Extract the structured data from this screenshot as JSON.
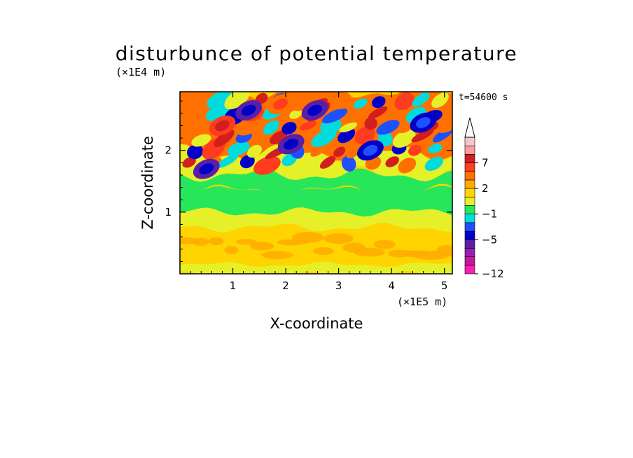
{
  "chart_data": {
    "type": "heatmap",
    "title": "disturbunce of potential temperature",
    "xlabel": "X-coordinate",
    "ylabel": "Z-coordinate",
    "x_unit": "(×1E5 m)",
    "y_unit": "(×1E4 m)",
    "time_label": "t=54600 s",
    "xlim": [
      0,
      5.15
    ],
    "ylim": [
      0,
      2.95
    ],
    "x_ticks": [
      1,
      2,
      3,
      4,
      5
    ],
    "y_ticks": [
      1,
      2
    ],
    "colorbar": {
      "bins": [
        {
          "color": "#ff1cb4"
        },
        {
          "color": "#c8159e"
        },
        {
          "color": "#9a1fb4"
        },
        {
          "color": "#5a1fa8"
        },
        {
          "color": "#0000c8"
        },
        {
          "color": "#1e50ff"
        },
        {
          "color": "#00dcdc"
        },
        {
          "color": "#28e65a"
        },
        {
          "color": "#e6f028"
        },
        {
          "color": "#ffd400"
        },
        {
          "color": "#ffaa00"
        },
        {
          "color": "#ff7000"
        },
        {
          "color": "#ff3c1e"
        },
        {
          "color": "#d21e1e"
        },
        {
          "color": "#ff9e9e"
        },
        {
          "color": "#f4c8c8"
        }
      ],
      "labeled_ticks": [
        {
          "label": "7",
          "bin_edge": 13
        },
        {
          "label": "2",
          "bin_edge": 10
        },
        {
          "label": "−1",
          "bin_edge": 7
        },
        {
          "label": "−5",
          "bin_edge": 4
        },
        {
          "label": "−12",
          "bin_edge": 0
        }
      ]
    },
    "regions": [
      {
        "z": [
          0.0,
          0.75
        ],
        "class": 9
      },
      {
        "z": [
          0.75,
          1.0
        ],
        "class": 8
      },
      {
        "z": [
          1.0,
          1.35
        ],
        "class": 7
      },
      {
        "z": [
          1.35,
          1.6
        ],
        "class": 7
      },
      {
        "z": [
          1.6,
          2.95
        ],
        "class": 11
      }
    ],
    "features": [
      {
        "x": 1.3,
        "z": 2.65,
        "class": 4
      },
      {
        "x": 2.55,
        "z": 2.65,
        "class": 4
      },
      {
        "x": 4.6,
        "z": 2.45,
        "class": 5
      },
      {
        "x": 2.1,
        "z": 2.1,
        "class": 4
      },
      {
        "x": 0.5,
        "z": 1.7,
        "class": 4
      },
      {
        "x": 3.6,
        "z": 2.0,
        "class": 5
      },
      {
        "x": 1.9,
        "z": 2.75,
        "class": 12
      },
      {
        "x": 0.8,
        "z": 2.4,
        "class": 13
      }
    ]
  }
}
